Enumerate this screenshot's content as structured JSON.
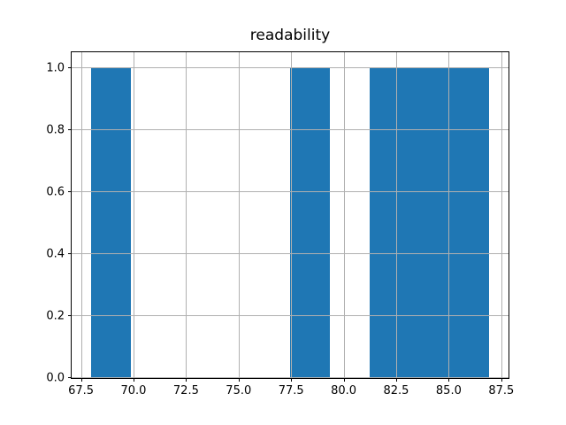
{
  "chart_data": {
    "type": "bar",
    "subtype": "histogram",
    "title": "readability",
    "bin_edges": [
      68.0,
      69.89,
      71.78,
      73.67,
      75.56,
      77.45,
      79.34,
      81.23,
      83.12,
      85.01,
      86.9
    ],
    "counts": [
      1,
      0,
      0,
      0,
      0,
      1,
      0,
      1,
      1,
      1
    ],
    "xticks": [
      67.5,
      70.0,
      72.5,
      75.0,
      77.5,
      80.0,
      82.5,
      85.0,
      87.5
    ],
    "xtick_labels": [
      "67.5",
      "70.0",
      "72.5",
      "75.0",
      "77.5",
      "80.0",
      "82.5",
      "85.0",
      "87.5"
    ],
    "yticks": [
      0.0,
      0.2,
      0.4,
      0.6,
      0.8,
      1.0
    ],
    "ytick_labels": [
      "0.0",
      "0.2",
      "0.4",
      "0.6",
      "0.8",
      "1.0"
    ],
    "xlim": [
      67.055,
      87.845
    ],
    "ylim": [
      0,
      1.05
    ],
    "xlabel": "",
    "ylabel": "",
    "grid": true,
    "grid_over_bars": true,
    "legend_position": "none",
    "bar_color": "#1f77b4",
    "grid_color": "#b0b0b0",
    "axis_color": "#000000",
    "background_color": "#ffffff"
  }
}
